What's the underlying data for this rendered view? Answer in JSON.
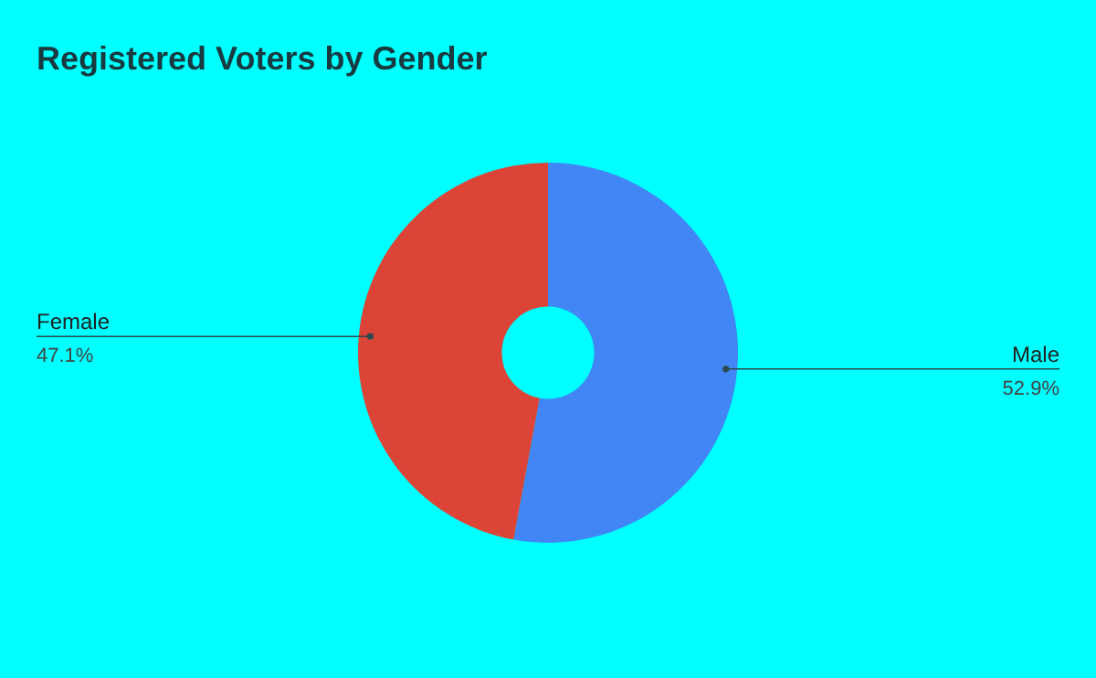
{
  "chart_data": {
    "type": "donut",
    "title": "Registered Voters by Gender",
    "categories": [
      "Male",
      "Female"
    ],
    "values": [
      52.9,
      47.1
    ],
    "value_labels": [
      "52.9%",
      "47.1%"
    ],
    "colors": [
      "#4285f4",
      "#db4437"
    ]
  }
}
